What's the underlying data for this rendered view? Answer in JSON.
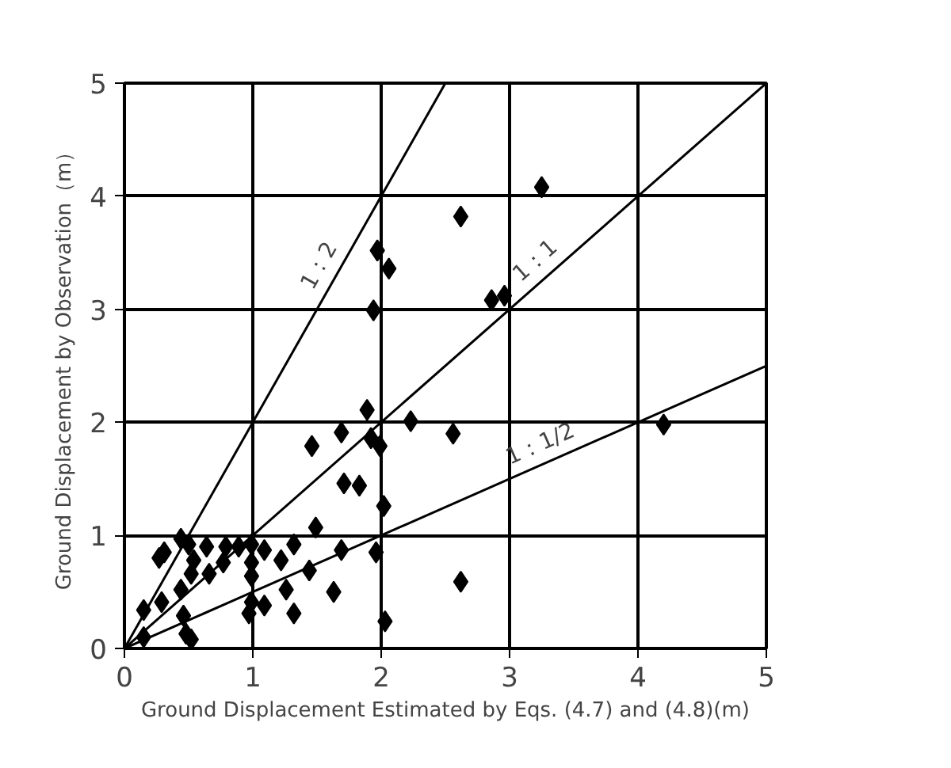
{
  "chart_data": {
    "type": "scatter",
    "xlabel": "Ground Displacement Estimated by Eqs. (4.7) and (4.8)(m)",
    "ylabel": "Ground Displacement by Observation（m）",
    "xlim": [
      0,
      5
    ],
    "ylim": [
      0,
      5
    ],
    "xticks": [
      0,
      1,
      2,
      3,
      4,
      5
    ],
    "yticks": [
      0,
      1,
      2,
      3,
      4,
      5
    ],
    "grid": true,
    "series": [
      {
        "color": "#000000",
        "marker": "diamond",
        "x": [
          1.97,
          2.06,
          1.94,
          2.62,
          3.25,
          2.86,
          2.96,
          4.2,
          1.89,
          1.69,
          1.92,
          1.99,
          2.23,
          2.56,
          1.46,
          1.71,
          1.83,
          2.02,
          1.49,
          1.69,
          1.96,
          1.63,
          2.62,
          2.03,
          0.44,
          0.31,
          0.27,
          0.5,
          0.64,
          0.79,
          0.89,
          0.99,
          1.09,
          1.32,
          0.54,
          0.77,
          0.99,
          1.22,
          0.52,
          0.66,
          1.44,
          0.99,
          0.44,
          1.26,
          0.99,
          1.09,
          0.15,
          0.29,
          0.46,
          1.32,
          0.97,
          0.48,
          0.52,
          0.15
        ],
        "values": [
          3.52,
          3.36,
          2.99,
          3.82,
          4.08,
          3.08,
          3.12,
          1.98,
          2.11,
          1.91,
          1.86,
          1.79,
          2.01,
          1.9,
          1.79,
          1.46,
          1.44,
          1.26,
          1.07,
          0.87,
          0.85,
          0.5,
          0.59,
          0.24,
          0.97,
          0.85,
          0.8,
          0.92,
          0.9,
          0.9,
          0.9,
          0.92,
          0.87,
          0.92,
          0.78,
          0.76,
          0.76,
          0.78,
          0.66,
          0.66,
          0.69,
          0.64,
          0.52,
          0.52,
          0.41,
          0.38,
          0.34,
          0.41,
          0.29,
          0.31,
          0.31,
          0.13,
          0.08,
          0.1
        ]
      },
      {
        "type": "line",
        "name": "1：2",
        "color": "#000000",
        "line_style": "solid",
        "marker": "none",
        "x": [
          0,
          2.5
        ],
        "values": [
          0,
          5
        ]
      },
      {
        "type": "line",
        "name": "1：1",
        "color": "#000000",
        "line_style": "solid",
        "marker": "none",
        "x": [
          0,
          5
        ],
        "values": [
          0,
          5
        ]
      },
      {
        "type": "line",
        "name": "1：1/2",
        "color": "#000000",
        "line_style": "solid",
        "marker": "none",
        "x": [
          0,
          5
        ],
        "values": [
          0,
          2.5
        ]
      }
    ]
  }
}
